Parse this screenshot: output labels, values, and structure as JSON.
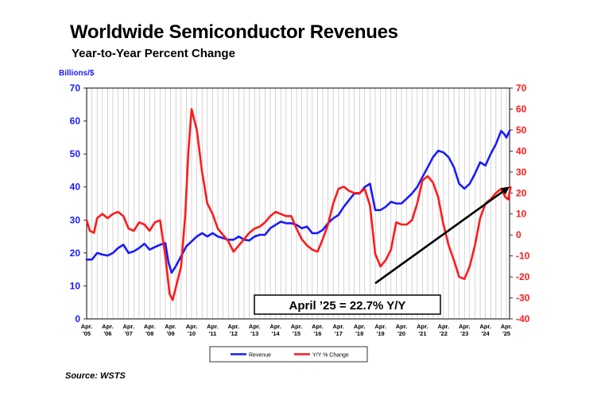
{
  "header": {
    "title": "Worldwide Semiconductor Revenues",
    "subtitle": "Year-to-Year Percent Change"
  },
  "footer": {
    "source": "Source: WSTS"
  },
  "annotation": {
    "label": "April ’25 = 22.7% Y/Y"
  },
  "colors": {
    "revenue": "#1a1aff",
    "yoy": "#ff1a1a",
    "trend_arrow": "#000000",
    "left_axis": "#1a1aff",
    "right_axis": "#ff1a1a"
  },
  "chart_data": {
    "type": "line",
    "ylabel_left": "Billions/$",
    "ylim_left": [
      0,
      70
    ],
    "ylim_right": [
      -40,
      70
    ],
    "yticks_left": [
      "0",
      "10",
      "20",
      "30",
      "40",
      "50",
      "60",
      "70"
    ],
    "yticks_right": [
      "-40",
      "-30",
      "-20",
      "-10",
      "0",
      "10",
      "20",
      "30",
      "40",
      "50",
      "60",
      "70"
    ],
    "x_ticks": [
      {
        "line1": "Apr.",
        "line2": "'05"
      },
      {
        "line1": "Apr.",
        "line2": "'06"
      },
      {
        "line1": "Apr.",
        "line2": "'07"
      },
      {
        "line1": "Apr.",
        "line2": "'08"
      },
      {
        "line1": "Apr.",
        "line2": "'09"
      },
      {
        "line1": "Apr.",
        "line2": "'10"
      },
      {
        "line1": "Apr.",
        "line2": "'11"
      },
      {
        "line1": "Apr.",
        "line2": "'12"
      },
      {
        "line1": "Apr.",
        "line2": "'13"
      },
      {
        "line1": "Apr.",
        "line2": "'14"
      },
      {
        "line1": "Apr.",
        "line2": "'15"
      },
      {
        "line1": "Apr.",
        "line2": "'16"
      },
      {
        "line1": "Apr.",
        "line2": "'17"
      },
      {
        "line1": "Apr.",
        "line2": "'18"
      },
      {
        "line1": "Apr.",
        "line2": "'19"
      },
      {
        "line1": "Apr.",
        "line2": "'20"
      },
      {
        "line1": "Apr.",
        "line2": "'21"
      },
      {
        "line1": "Apr.",
        "line2": "'22"
      },
      {
        "line1": "Apr.",
        "line2": "'23"
      },
      {
        "line1": "Apr.",
        "line2": "'24"
      },
      {
        "line1": "Apr.",
        "line2": "'25"
      }
    ],
    "x_start": "Apr. 2005",
    "x_end": "Apr. 2025",
    "grid": true,
    "legend_position": "bottom",
    "series": [
      {
        "name": "Revenue",
        "axis": "left",
        "points": [
          [
            2005.25,
            18.0
          ],
          [
            2005.5,
            18.0
          ],
          [
            2005.75,
            20.0
          ],
          [
            2006.0,
            19.5
          ],
          [
            2006.25,
            19.2
          ],
          [
            2006.5,
            20.0
          ],
          [
            2006.75,
            21.5
          ],
          [
            2007.0,
            22.5
          ],
          [
            2007.25,
            20.0
          ],
          [
            2007.5,
            20.5
          ],
          [
            2007.75,
            21.5
          ],
          [
            2008.0,
            22.8
          ],
          [
            2008.25,
            21.0
          ],
          [
            2008.5,
            21.8
          ],
          [
            2008.75,
            22.5
          ],
          [
            2009.0,
            23.0
          ],
          [
            2009.15,
            17.0
          ],
          [
            2009.3,
            14.0
          ],
          [
            2009.5,
            16.0
          ],
          [
            2009.75,
            19.0
          ],
          [
            2010.0,
            22.0
          ],
          [
            2010.25,
            23.5
          ],
          [
            2010.5,
            25.0
          ],
          [
            2010.75,
            26.0
          ],
          [
            2011.0,
            25.0
          ],
          [
            2011.25,
            26.0
          ],
          [
            2011.5,
            25.0
          ],
          [
            2011.75,
            24.5
          ],
          [
            2012.0,
            24.0
          ],
          [
            2012.25,
            24.0
          ],
          [
            2012.5,
            25.0
          ],
          [
            2012.75,
            24.0
          ],
          [
            2013.0,
            23.8
          ],
          [
            2013.25,
            25.0
          ],
          [
            2013.5,
            25.5
          ],
          [
            2013.75,
            25.5
          ],
          [
            2014.0,
            27.5
          ],
          [
            2014.25,
            28.5
          ],
          [
            2014.5,
            29.5
          ],
          [
            2014.75,
            29.0
          ],
          [
            2015.0,
            29.0
          ],
          [
            2015.25,
            28.5
          ],
          [
            2015.5,
            27.5
          ],
          [
            2015.75,
            28.0
          ],
          [
            2016.0,
            26.0
          ],
          [
            2016.25,
            26.0
          ],
          [
            2016.5,
            27.0
          ],
          [
            2016.75,
            29.0
          ],
          [
            2017.0,
            30.5
          ],
          [
            2017.25,
            31.5
          ],
          [
            2017.5,
            34.0
          ],
          [
            2017.75,
            36.0
          ],
          [
            2018.0,
            38.0
          ],
          [
            2018.25,
            38.0
          ],
          [
            2018.5,
            40.0
          ],
          [
            2018.75,
            41.0
          ],
          [
            2019.0,
            33.0
          ],
          [
            2019.25,
            33.0
          ],
          [
            2019.5,
            34.0
          ],
          [
            2019.75,
            35.5
          ],
          [
            2020.0,
            35.0
          ],
          [
            2020.25,
            35.0
          ],
          [
            2020.5,
            36.5
          ],
          [
            2020.75,
            38.0
          ],
          [
            2021.0,
            40.0
          ],
          [
            2021.25,
            43.0
          ],
          [
            2021.5,
            46.0
          ],
          [
            2021.75,
            49.0
          ],
          [
            2022.0,
            51.0
          ],
          [
            2022.25,
            50.5
          ],
          [
            2022.5,
            49.0
          ],
          [
            2022.75,
            46.0
          ],
          [
            2023.0,
            41.0
          ],
          [
            2023.25,
            39.5
          ],
          [
            2023.5,
            41.0
          ],
          [
            2023.75,
            44.0
          ],
          [
            2024.0,
            47.5
          ],
          [
            2024.25,
            46.5
          ],
          [
            2024.5,
            50.0
          ],
          [
            2024.75,
            53.0
          ],
          [
            2025.0,
            57.0
          ],
          [
            2025.15,
            56.0
          ],
          [
            2025.25,
            55.0
          ],
          [
            2025.4,
            57.0
          ]
        ]
      },
      {
        "name": "Y/Y % Change",
        "axis": "right",
        "points": [
          [
            2005.25,
            7.0
          ],
          [
            2005.4,
            2.0
          ],
          [
            2005.6,
            1.0
          ],
          [
            2005.75,
            8.0
          ],
          [
            2006.0,
            10.0
          ],
          [
            2006.25,
            8.0
          ],
          [
            2006.5,
            10.0
          ],
          [
            2006.75,
            11.0
          ],
          [
            2007.0,
            9.0
          ],
          [
            2007.25,
            3.0
          ],
          [
            2007.5,
            2.0
          ],
          [
            2007.75,
            6.0
          ],
          [
            2008.0,
            5.0
          ],
          [
            2008.25,
            2.0
          ],
          [
            2008.5,
            6.0
          ],
          [
            2008.75,
            7.0
          ],
          [
            2009.0,
            -10.0
          ],
          [
            2009.2,
            -28.0
          ],
          [
            2009.35,
            -31.0
          ],
          [
            2009.5,
            -25.0
          ],
          [
            2009.75,
            -15.0
          ],
          [
            2009.95,
            10.0
          ],
          [
            2010.1,
            40.0
          ],
          [
            2010.25,
            60.0
          ],
          [
            2010.5,
            50.0
          ],
          [
            2010.75,
            30.0
          ],
          [
            2011.0,
            15.0
          ],
          [
            2011.25,
            10.0
          ],
          [
            2011.5,
            3.0
          ],
          [
            2011.75,
            0.0
          ],
          [
            2012.0,
            -3.0
          ],
          [
            2012.25,
            -8.0
          ],
          [
            2012.5,
            -5.0
          ],
          [
            2012.75,
            -2.0
          ],
          [
            2013.0,
            1.0
          ],
          [
            2013.25,
            3.0
          ],
          [
            2013.5,
            4.0
          ],
          [
            2013.75,
            6.0
          ],
          [
            2014.0,
            9.0
          ],
          [
            2014.25,
            11.0
          ],
          [
            2014.5,
            10.0
          ],
          [
            2014.75,
            9.0
          ],
          [
            2015.0,
            9.0
          ],
          [
            2015.25,
            3.0
          ],
          [
            2015.5,
            -2.0
          ],
          [
            2015.75,
            -5.0
          ],
          [
            2016.0,
            -7.0
          ],
          [
            2016.25,
            -8.0
          ],
          [
            2016.5,
            -2.0
          ],
          [
            2016.75,
            5.0
          ],
          [
            2017.0,
            15.0
          ],
          [
            2017.25,
            22.0
          ],
          [
            2017.5,
            23.0
          ],
          [
            2017.75,
            21.0
          ],
          [
            2018.0,
            20.0
          ],
          [
            2018.25,
            20.0
          ],
          [
            2018.5,
            22.0
          ],
          [
            2018.75,
            14.0
          ],
          [
            2019.0,
            -9.0
          ],
          [
            2019.25,
            -15.0
          ],
          [
            2019.5,
            -12.0
          ],
          [
            2019.75,
            -7.0
          ],
          [
            2020.0,
            6.0
          ],
          [
            2020.25,
            5.0
          ],
          [
            2020.5,
            5.0
          ],
          [
            2020.75,
            7.0
          ],
          [
            2021.0,
            15.0
          ],
          [
            2021.25,
            26.0
          ],
          [
            2021.5,
            28.0
          ],
          [
            2021.75,
            25.0
          ],
          [
            2022.0,
            18.0
          ],
          [
            2022.25,
            5.0
          ],
          [
            2022.5,
            -5.0
          ],
          [
            2022.75,
            -12.0
          ],
          [
            2023.0,
            -20.0
          ],
          [
            2023.25,
            -21.0
          ],
          [
            2023.5,
            -15.0
          ],
          [
            2023.75,
            -5.0
          ],
          [
            2024.0,
            8.0
          ],
          [
            2024.25,
            15.0
          ],
          [
            2024.5,
            17.0
          ],
          [
            2024.75,
            20.0
          ],
          [
            2025.0,
            22.0
          ],
          [
            2025.1,
            20.0
          ],
          [
            2025.2,
            18.0
          ],
          [
            2025.33,
            17.0
          ],
          [
            2025.45,
            22.7
          ]
        ]
      }
    ],
    "trend_arrow": {
      "from": [
        2019.0,
        -23.0
      ],
      "to": [
        2025.4,
        23.0
      ]
    }
  }
}
